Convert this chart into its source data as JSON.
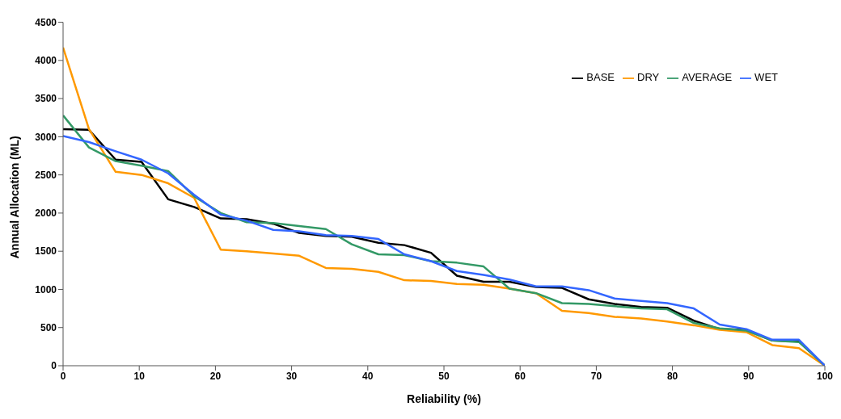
{
  "chart_data": {
    "type": "line",
    "xlabel": "Reliability (%)",
    "ylabel": "Annual Allocation (ML)",
    "x": [
      0,
      3.4,
      6.9,
      10.3,
      13.8,
      17.2,
      20.7,
      24.1,
      27.6,
      31,
      34.5,
      37.9,
      41.4,
      44.8,
      48.3,
      51.7,
      55.2,
      58.6,
      62.1,
      65.5,
      69,
      72.4,
      75.9,
      79.3,
      82.8,
      86.2,
      89.7,
      93.1,
      96.6,
      100
    ],
    "series": [
      {
        "name": "BASE",
        "color": "#000000",
        "values": [
          3100,
          3090,
          2700,
          2670,
          2180,
          2080,
          1930,
          1920,
          1860,
          1740,
          1700,
          1690,
          1610,
          1580,
          1480,
          1180,
          1100,
          1100,
          1030,
          1020,
          870,
          810,
          770,
          760,
          590,
          480,
          470,
          330,
          320,
          0
        ]
      },
      {
        "name": "DRY",
        "color": "#ff9900",
        "values": [
          4170,
          3100,
          2540,
          2500,
          2390,
          2200,
          1520,
          1500,
          1470,
          1440,
          1280,
          1270,
          1230,
          1120,
          1110,
          1070,
          1060,
          1010,
          950,
          720,
          690,
          640,
          620,
          580,
          530,
          470,
          440,
          270,
          230,
          0
        ]
      },
      {
        "name": "AVERAGE",
        "color": "#339966",
        "values": [
          3280,
          2860,
          2680,
          2620,
          2550,
          2220,
          2000,
          1880,
          1870,
          1830,
          1790,
          1590,
          1460,
          1450,
          1370,
          1350,
          1300,
          1010,
          950,
          820,
          810,
          780,
          750,
          740,
          560,
          490,
          460,
          330,
          310,
          0
        ]
      },
      {
        "name": "WET",
        "color": "#3366ff",
        "values": [
          3010,
          2930,
          2810,
          2700,
          2520,
          2240,
          1980,
          1900,
          1780,
          1760,
          1710,
          1700,
          1660,
          1460,
          1370,
          1240,
          1190,
          1130,
          1040,
          1040,
          990,
          880,
          850,
          820,
          750,
          540,
          480,
          340,
          340,
          0
        ]
      }
    ],
    "xlim": [
      0,
      100
    ],
    "xticks": [
      0,
      10,
      20,
      30,
      40,
      50,
      60,
      70,
      80,
      90,
      100
    ],
    "ylim": [
      0,
      4500
    ],
    "yticks": [
      0,
      500,
      1000,
      1500,
      2000,
      2500,
      3000,
      3500,
      4000,
      4500
    ],
    "grid": false,
    "legend": "top right",
    "marker": "none",
    "line_style": "solid"
  }
}
